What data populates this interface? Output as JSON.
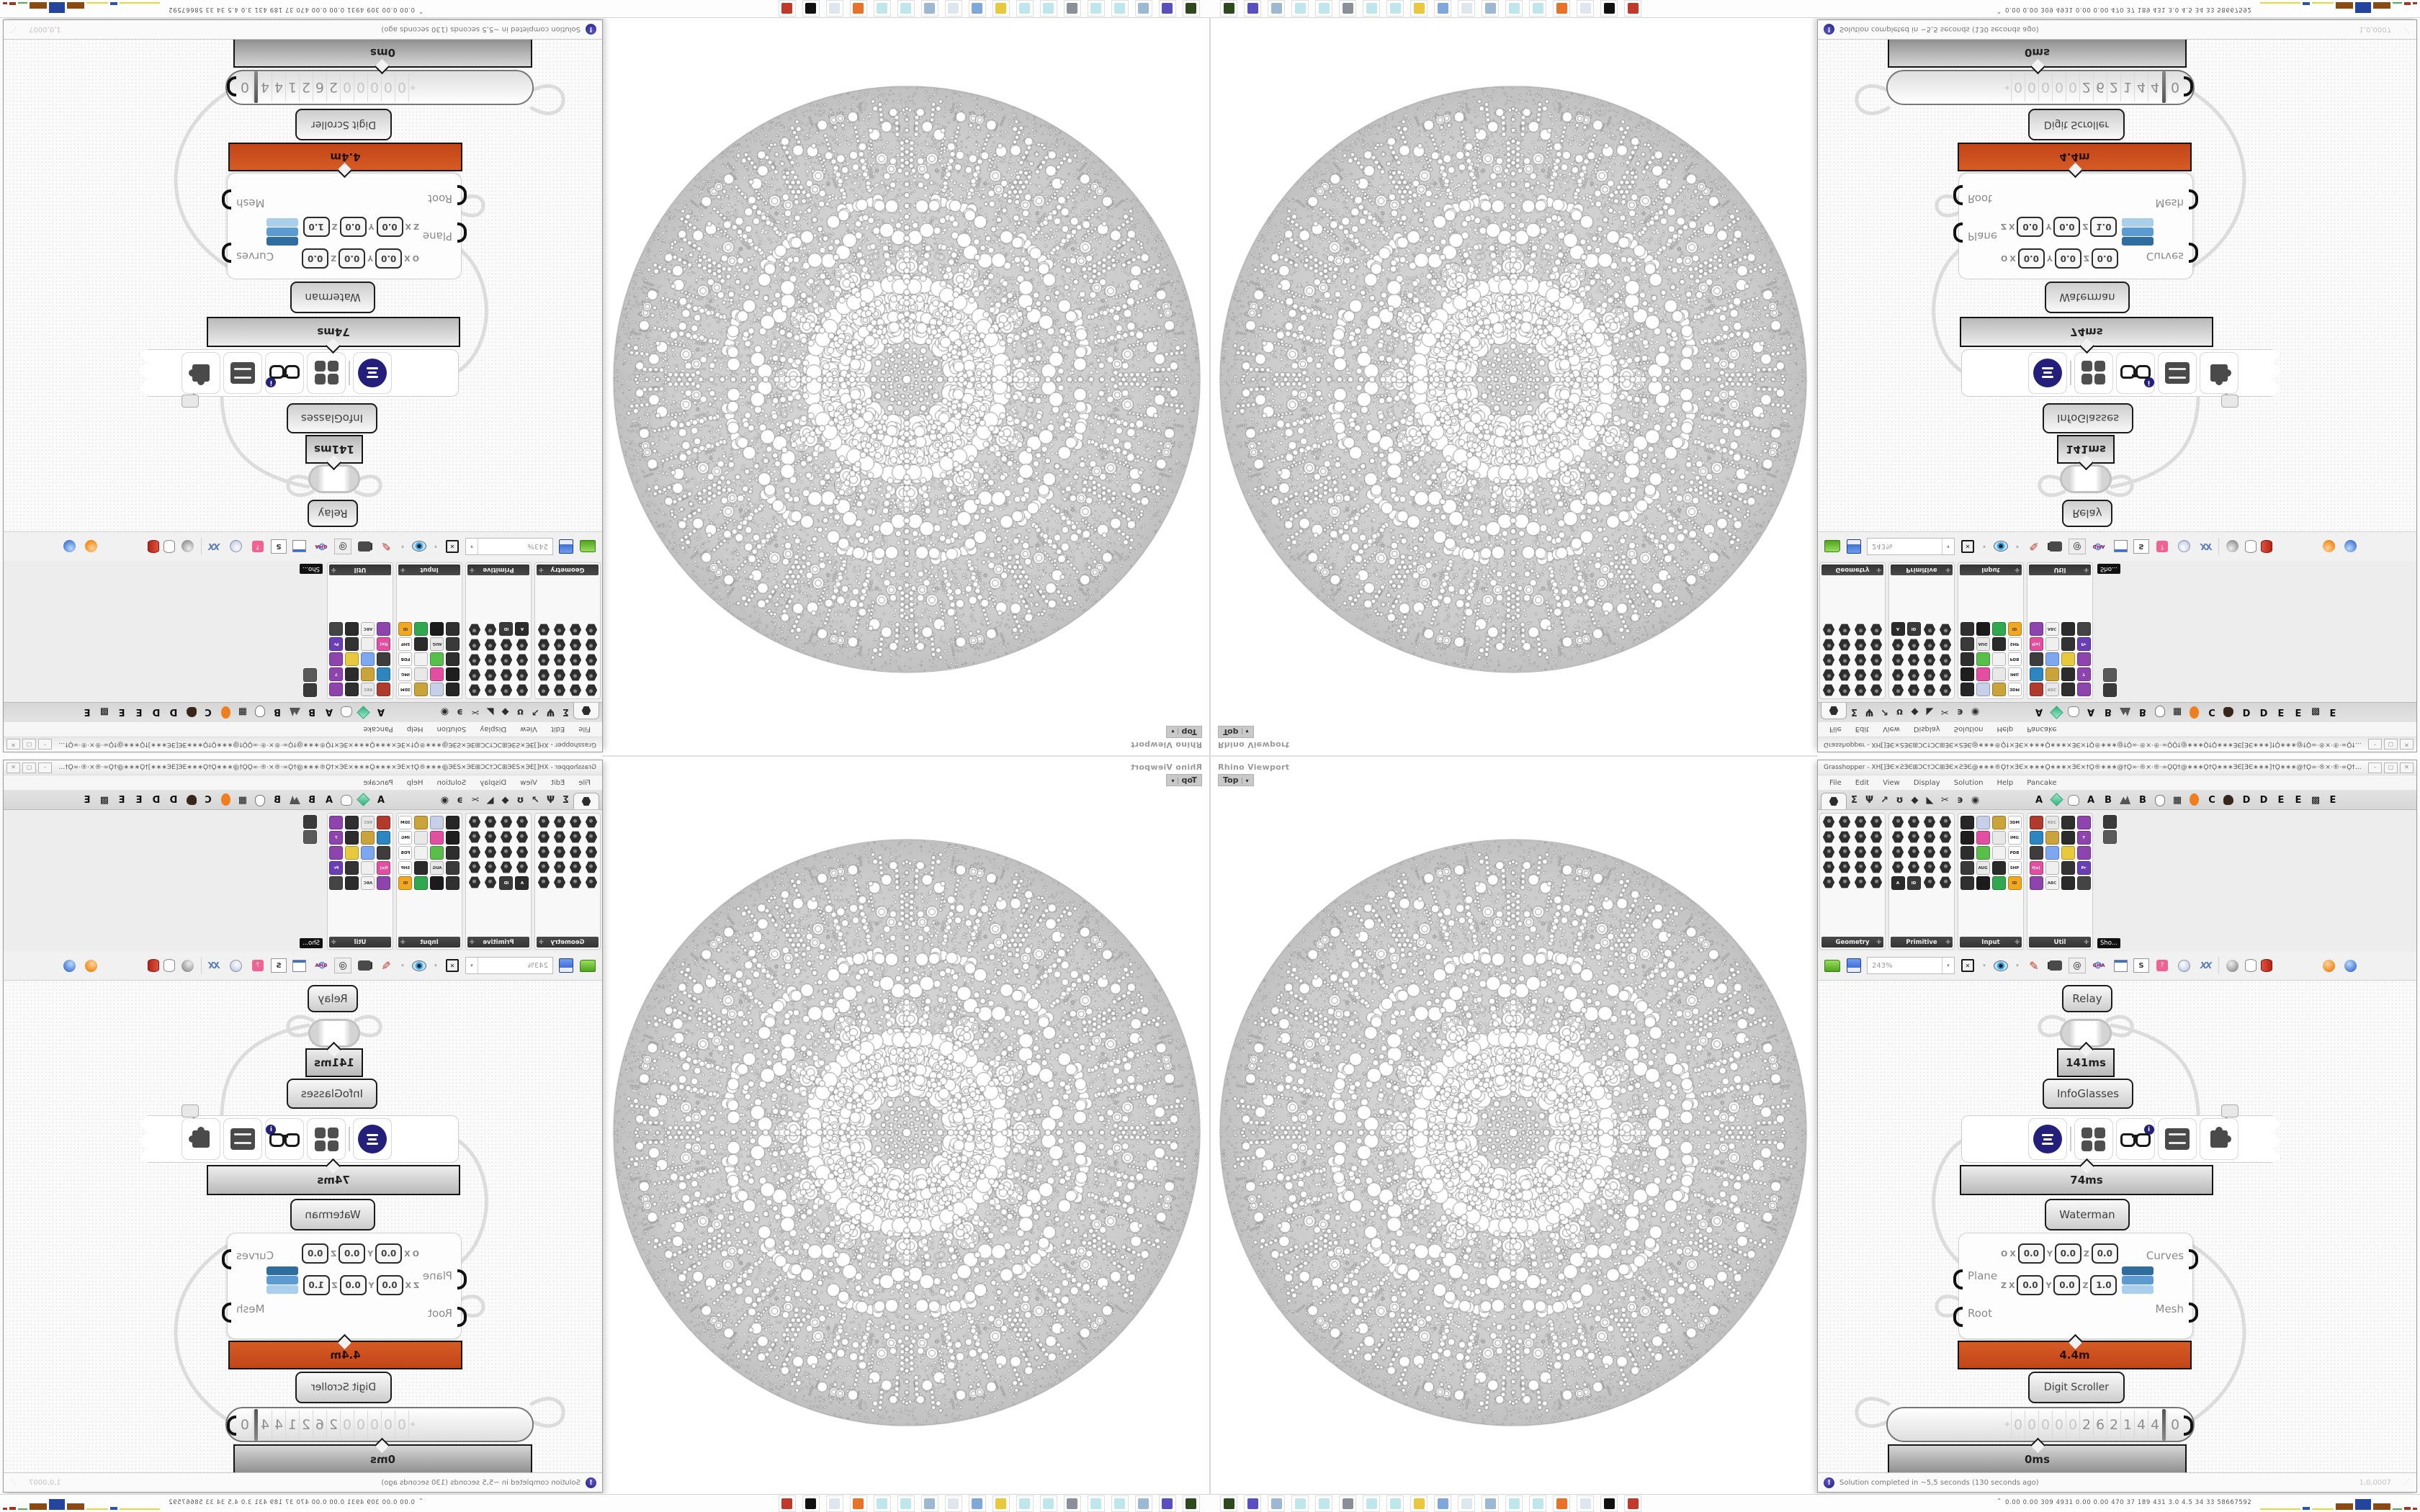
{
  "viewport": {
    "label": "Rhino Viewport",
    "tab": "Top",
    "tab_arrow": "▾"
  },
  "window": {
    "title": "Grasshopper - XH[]ƎЄ×ƧƎЄ⊞ƆϹ†ƆϹ⊞ƎЄ×ƧƎЄ@∗∗∗®Ϙ†×ƎЄ×∗∗∗Ϙ∗∗∗×ƎЄ×†Ϙ®∗∗∗@†Ϙ∞·®×·®·∞ϘϘ†@∗∗∗Ϙ†Ϙ∗∗∗ƎЄ[ƎЄ∗∗∗]†Ϙ∗∗∗@†Ϙ∞·®×·®·∞Ϙ†@∗∗∗®Ϙ†×ƎЄ×∗∗∗Ϙ()…",
    "minimize": "–",
    "maximize": "▢",
    "close": "✕"
  },
  "menu": {
    "items": [
      {
        "t": "File"
      },
      {
        "t": "Edit"
      },
      {
        "t": "View"
      },
      {
        "t": "Display"
      },
      {
        "t": "Solution"
      },
      {
        "t": "Help"
      },
      {
        "t": "Pancake"
      }
    ]
  },
  "tabs": {
    "category": [
      {
        "t": "Σ"
      },
      {
        "t": "Ψ"
      },
      {
        "t": "↗"
      },
      {
        "t": "ʊ"
      },
      {
        "t": "◆"
      },
      {
        "t": "◣"
      },
      {
        "t": "✂"
      },
      {
        "t": "϶"
      },
      {
        "t": "◉"
      }
    ],
    "plugins": [
      {
        "t": "A"
      },
      {
        "k": "gem"
      },
      {
        "k": "brain"
      },
      {
        "t": "A"
      },
      {
        "t": "B"
      },
      {
        "k": "mountain"
      },
      {
        "t": "B"
      },
      {
        "k": "shield"
      },
      {
        "t": "▦"
      },
      {
        "k": "orange"
      },
      {
        "t": "C"
      },
      {
        "k": "bird"
      },
      {
        "t": "D"
      },
      {
        "t": "D"
      },
      {
        "t": "E"
      },
      {
        "t": "E"
      },
      {
        "t": "▩"
      },
      {
        "t": "E"
      }
    ]
  },
  "palette": {
    "groups": [
      {
        "name": "Geometry",
        "cells": [
          {
            "k": "hexd"
          },
          {
            "k": "hexd"
          },
          {
            "k": "hexd"
          },
          {
            "k": "hexd"
          },
          {
            "k": "hexd"
          },
          {
            "k": "hexd"
          },
          {
            "k": "hexd"
          },
          {
            "k": "hexd"
          },
          {
            "k": "hexd"
          },
          {
            "k": "hexd"
          },
          {
            "k": "hexd"
          },
          {
            "k": "hexd"
          },
          {
            "k": "hexd"
          },
          {
            "k": "hexd"
          },
          {
            "k": "hexd"
          },
          {
            "k": "hexd"
          },
          {
            "k": "hexd"
          },
          {
            "k": "hexd"
          },
          {
            "k": "hexd"
          },
          {
            "k": "hexd"
          }
        ]
      },
      {
        "name": "Primitive",
        "cells": [
          {
            "k": "hexd"
          },
          {
            "k": "hexd"
          },
          {
            "k": "hexd"
          },
          {
            "k": "hexd"
          },
          {
            "k": "hexd"
          },
          {
            "k": "hexd"
          },
          {
            "k": "hexd"
          },
          {
            "k": "hexd"
          },
          {
            "k": "hexd"
          },
          {
            "k": "hexd"
          },
          {
            "k": "hexd"
          },
          {
            "k": "hexd"
          },
          {
            "k": "hexd"
          },
          {
            "k": "hexd"
          },
          {
            "k": "hexd"
          },
          {
            "k": "hexd"
          },
          {
            "t": "A",
            "bg": "#2b2b2b"
          },
          {
            "t": "ID",
            "bg": "#3a3a3a"
          },
          {
            "k": "hexd"
          },
          {
            "k": "hexd"
          }
        ]
      },
      {
        "name": "Input",
        "cells": [
          {
            "bg": "#262626"
          },
          {
            "bg": "#c8cfe8"
          },
          {
            "bg": "#caa43b"
          },
          {
            "t": "3DM",
            "bg": "#ffffff",
            "fg": "#222"
          },
          {
            "bg": "#1e1e1e"
          },
          {
            "bg": "#e34fa0"
          },
          {
            "bg": "#e8e8e8"
          },
          {
            "t": "IMG",
            "bg": "#ffffff",
            "fg": "#222"
          },
          {
            "bg": "#2e2e2e"
          },
          {
            "bg": "#58c04a"
          },
          {
            "bg": "#f2f2f2"
          },
          {
            "t": "PDB",
            "bg": "#ffffff",
            "fg": "#222"
          },
          {
            "bg": "#3a3a3a"
          },
          {
            "t": "AUG",
            "bg": "#e8e8e8",
            "fg": "#333"
          },
          {
            "bg": "#2b2b2b"
          },
          {
            "t": "SHP",
            "bg": "#ffffff",
            "fg": "#222"
          },
          {
            "bg": "#303030"
          },
          {
            "bg": "#1b1b1b"
          },
          {
            "bg": "#2fa84f"
          },
          {
            "t": "ID",
            "bg": "#f0a821",
            "fg": "#5a3500"
          }
        ]
      },
      {
        "name": "Util",
        "cells": [
          {
            "bg": "#b03a2e"
          },
          {
            "t": "REC",
            "bg": "#e8e8e8",
            "fg": "#999"
          },
          {
            "bg": "#2f2f2f"
          },
          {
            "bg": "#8e44ad"
          },
          {
            "bg": "#2e86c1"
          },
          {
            "bg": "#caa43b"
          },
          {
            "bg": "#2c2c2c"
          },
          {
            "t": "7",
            "bg": "#8e44ad"
          },
          {
            "bg": "#3d3d3d"
          },
          {
            "bg": "#7da7f0"
          },
          {
            "bg": "#e8c93e"
          },
          {
            "bg": "#8e44ad"
          },
          {
            "t": "f(x)",
            "bg": "#e34fa0"
          },
          {
            "bg": "#efefef"
          },
          {
            "bg": "#333333"
          },
          {
            "t": "Pr",
            "bg": "#6a3fb5"
          },
          {
            "bg": "#8e44ad"
          },
          {
            "t": "ABC",
            "bg": "#f2f2f2",
            "fg": "#444"
          },
          {
            "bg": "#2b2b2b"
          },
          {
            "bg": "#444444"
          }
        ]
      }
    ],
    "mini": {
      "tooltip": "Sho...",
      "cells": [
        {
          "bg": "#3a3a3a"
        },
        {
          "bg": "#5a5a5a"
        }
      ]
    }
  },
  "toolbar": {
    "zoom": "243%",
    "zoom_arrow": "▾",
    "items": [
      {
        "k": "focus"
      },
      {
        "k": "dd",
        "t": "▾"
      },
      {
        "k": "eye"
      },
      {
        "k": "dd",
        "t": "▾"
      },
      {
        "k": "pen",
        "t": "✎"
      },
      {
        "k": "cam"
      },
      {
        "k": "at",
        "t": "@"
      },
      {
        "k": "gha",
        "t": "GHA"
      },
      {
        "k": "imgv"
      },
      {
        "k": "smag",
        "t": "S"
      },
      {
        "k": "bag"
      },
      {
        "k": "bulb"
      },
      {
        "k": "dna",
        "t": "XX"
      }
    ]
  },
  "balls": {
    "items": [
      {
        "k": "sphgray"
      },
      {
        "k": "cylw"
      },
      {
        "k": "cylr"
      },
      {
        "k": "ribteal"
      },
      {
        "k": "ribgreen"
      },
      {
        "k": "ballorange"
      },
      {
        "k": "ballblue"
      },
      {
        "k": "dd",
        "t": "▾"
      }
    ]
  },
  "nodes": {
    "relay": "Relay",
    "t141": "141ms",
    "infoglasses": "InfoGlasses",
    "t74": "74ms",
    "waterman": "Waterman",
    "runtime_red": "4.4m",
    "digit_scroller": "Digit Scroller",
    "runtime_gray": "0ms",
    "inputs": {
      "plane": "Plane",
      "root": "Root"
    },
    "outputs": {
      "curves": "Curves",
      "mesh": "Mesh"
    },
    "vec_rows": [
      {
        "a": "O",
        "b": "X",
        "v1": "0.0",
        "c": "Y",
        "v2": "0.0",
        "d": "Z",
        "v3": "0.0"
      },
      {
        "a": "Z",
        "b": "X",
        "v1": "0.0",
        "c": "Y",
        "v2": "0.0",
        "d": "Z",
        "v3": "1.0"
      }
    ],
    "badge": "i",
    "scroller": {
      "sign": "+",
      "cells": [
        {
          "t": "0",
          "k": "faint"
        },
        {
          "t": "0",
          "k": "faint"
        },
        {
          "t": "0",
          "k": "faint"
        },
        {
          "t": "0",
          "k": "faint"
        },
        {
          "t": "0",
          "k": "faint"
        },
        {
          "t": "2"
        },
        {
          "t": "6"
        },
        {
          "t": "2"
        },
        {
          "t": "1"
        },
        {
          "t": "4"
        },
        {
          "t": "4"
        }
      ],
      "last": "0"
    }
  },
  "statusbar": {
    "text": "Solution completed in ~5,5 seconds (130 seconds ago)",
    "version": "1,0,0007",
    "grip": "⋰"
  },
  "taskbar": {
    "caret": "ˆ",
    "stats": "0.00 0.00 309 4931 0.00 0.00 470 37 189 431 3.0 4.5 34 33 58667592",
    "icons": [
      {
        "bg": "#2d4a1e"
      },
      {
        "bg": "#5a4fc0"
      },
      {
        "bg": "#9db8d2"
      },
      {
        "bg": "#bfe6ea"
      },
      {
        "bg": "#bfe6ea"
      },
      {
        "bg": "#8a8f98"
      },
      {
        "bg": "#bfe6ea"
      },
      {
        "bg": "#bfe6ea"
      },
      {
        "bg": "#e8c93e"
      },
      {
        "bg": "#7fa8d8"
      },
      {
        "bg": "#dfe6ee"
      },
      {
        "bg": "#9db8d2"
      },
      {
        "bg": "#bfe6ea"
      },
      {
        "bg": "#bfe6ea"
      },
      {
        "bg": "#e8722a"
      },
      {
        "bg": "#dfe6ee"
      },
      {
        "bg": "#111111"
      },
      {
        "bg": "#c0392b"
      }
    ],
    "chart": [
      {
        "st": "background:#ead83a;width:56px;height:2px"
      },
      {
        "st": "background:#2a52b0;width:10px;height:4px"
      },
      {
        "st": "background:#ead83a;width:30px;height:2px"
      },
      {
        "st": "background:#8a4a12;width:24px;height:9px"
      },
      {
        "st": "background:#24459e;width:22px;height:15px"
      },
      {
        "st": "background:#8a4a12;width:24px;height:9px"
      },
      {
        "st": "background:#4caf50;width:13px;height:2px"
      },
      {
        "st": "background:#a3341e;width:9px;height:4px"
      },
      {
        "st": "background:#a3341e;width:6px;height:3px"
      }
    ]
  },
  "colors": {
    "accent_red": "#c94f1e",
    "wire": "#dcdcdc",
    "navy": "#241f7a"
  }
}
